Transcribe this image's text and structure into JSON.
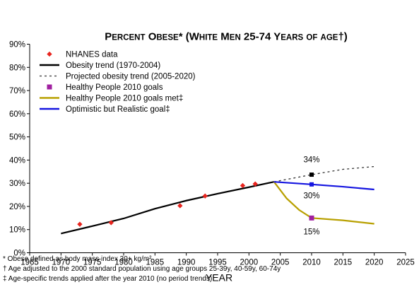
{
  "chart_data": {
    "type": "line",
    "title": "Percent Obese* (White Men 25-74 Years of age†)",
    "xlabel": "YEAR",
    "ylabel": "",
    "xlim": [
      1965,
      2025
    ],
    "ylim": [
      0,
      90
    ],
    "x_ticks": [
      "1965",
      "1970",
      "1975",
      "1980",
      "1985",
      "1990",
      "1995",
      "2000",
      "2005",
      "2010",
      "2015",
      "2020",
      "2025"
    ],
    "y_ticks": [
      "0%",
      "10%",
      "20%",
      "30%",
      "40%",
      "50%",
      "60%",
      "70%",
      "80%",
      "90%"
    ],
    "grid": false,
    "legend_position": "top-left",
    "series": [
      {
        "name": "NHANES data",
        "kind": "points",
        "color": "#e8251f",
        "x": [
          1973,
          1978,
          1989,
          1993,
          1999,
          2001
        ],
        "y": [
          12.3,
          13.0,
          20.3,
          24.5,
          29.0,
          29.7
        ]
      },
      {
        "name": "Obesity trend (1970-2004)",
        "kind": "line",
        "color": "#000000",
        "x": [
          1970,
          1975,
          1980,
          1985,
          1990,
          1995,
          2000,
          2004
        ],
        "y": [
          8.3,
          11.5,
          14.8,
          19.0,
          22.5,
          25.5,
          28.3,
          30.6
        ]
      },
      {
        "name": "Projected obesity trend (2005-2020)",
        "kind": "dashed",
        "color": "#333333",
        "x": [
          2004,
          2010,
          2015,
          2020
        ],
        "y": [
          30.6,
          33.7,
          36.0,
          37.2
        ]
      },
      {
        "name": "Healthy People 2010 goals",
        "kind": "squares",
        "color": "#a020a0",
        "x": [
          2010
        ],
        "y": [
          15.0
        ]
      },
      {
        "name": "Healthy People 2010 goals met‡",
        "kind": "line",
        "color": "#b8a000",
        "x": [
          2004,
          2006,
          2008,
          2010,
          2015,
          2020
        ],
        "y": [
          30.6,
          23.5,
          18.5,
          15.0,
          14.0,
          12.5
        ]
      },
      {
        "name": "Optimistic but Realistic goal‡",
        "kind": "line",
        "color": "#1515e0",
        "x": [
          2004,
          2010,
          2015,
          2020
        ],
        "y": [
          30.6,
          29.5,
          28.5,
          27.3
        ]
      }
    ],
    "markers": [
      {
        "x": 2010,
        "y": 33.7,
        "color": "#000000"
      },
      {
        "x": 2010,
        "y": 29.5,
        "color": "#1515e0"
      }
    ],
    "annotations": [
      {
        "text": "34%",
        "x": 2010,
        "y": 39.0
      },
      {
        "text": "30%",
        "x": 2010,
        "y": 23.5
      },
      {
        "text": "15%",
        "x": 2010,
        "y": 8.0
      }
    ]
  },
  "footnotes": [
    "* Obese defined as body mass index 30+ kg/m²",
    "† Age adjusted to the 2000 standard population using age groups 25-39y, 40-59y, 60-74y",
    "‡ Age-specific trends applied after the year 2010 (no period trends)"
  ]
}
